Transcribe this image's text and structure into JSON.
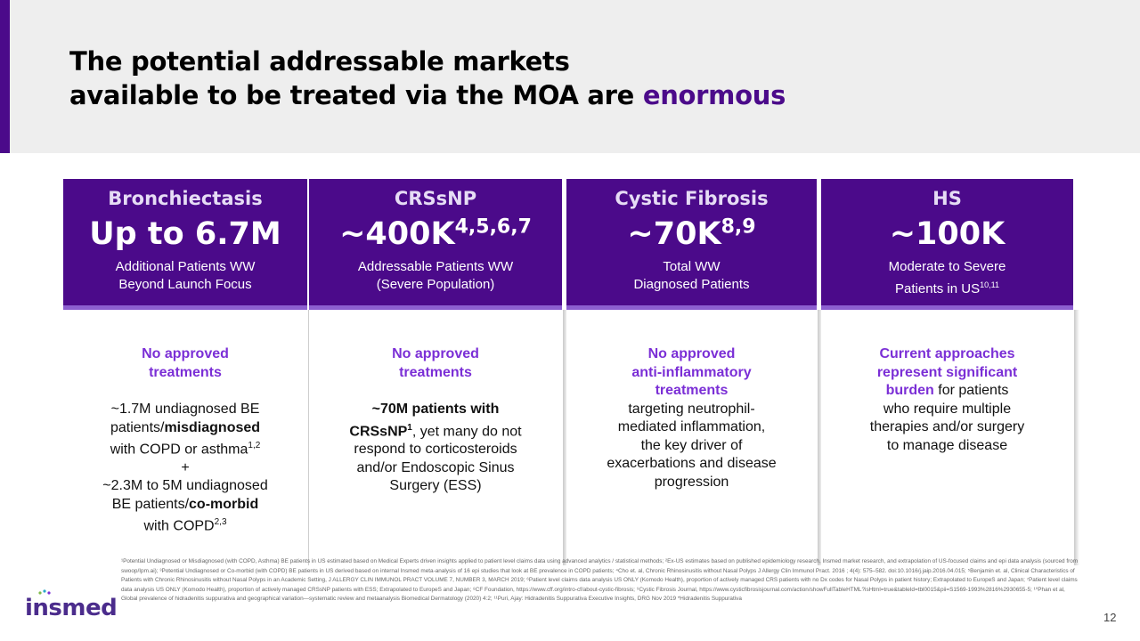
{
  "title": {
    "line1": "The potential addressable markets",
    "line2_prefix": "available to be treated via the MOA are ",
    "highlight": "enormous"
  },
  "cards": [
    {
      "name": "Bronchiectasis",
      "figure": "Up to 6.7M",
      "figure_sup": "",
      "sub1": "Additional Patients WW",
      "sub2": "Beyond Launch Focus",
      "callout1": "No approved",
      "callout2": "treatments",
      "t1": "~1.7M undiagnosed BE",
      "t2a": "patients/",
      "t2b": "misdiagnosed",
      "t3": "with COPD or asthma",
      "t3sup": "1,2",
      "t4": "+",
      "t5": "~2.3M to 5M undiagnosed",
      "t6a": "BE patients/",
      "t6b": "co-morbid",
      "t7": "with COPD",
      "t7sup": "2,3"
    },
    {
      "name": "CRSsNP",
      "figure": "~400K",
      "figure_sup": "4,5,6,7",
      "sub1": "Addressable Patients WW",
      "sub2": "(Severe Population)",
      "callout1": "No approved",
      "callout2": "treatments",
      "t1": "~70M patients with",
      "t2a": "CRSsNP",
      "t2sup": "1",
      "t2b": ", yet many do not",
      "t3": "respond to corticosteroids",
      "t4": "and/or Endoscopic Sinus",
      "t5": "Surgery (ESS)"
    },
    {
      "name": "Cystic Fibrosis",
      "figure": "~70K",
      "figure_sup": "8,9",
      "sub1": "Total WW",
      "sub2": "Diagnosed Patients",
      "callout1": "No approved",
      "callout2": "anti-inflammatory",
      "callout3": "treatments",
      "t1": "targeting neutrophil-",
      "t2": "mediated inflammation,",
      "t3": "the key driver of",
      "t4": "exacerbations and disease",
      "t5": "progression"
    },
    {
      "name": "HS",
      "figure": "~100K",
      "figure_sup": "",
      "sub1": "Moderate to Severe",
      "sub2": "Patients in US",
      "sub2sup": "10,11",
      "callout1": "Current approaches",
      "callout2": "represent significant",
      "callout3": "burden",
      "t1": " for patients",
      "t2": "who require multiple",
      "t3": "therapies and/or surgery",
      "t4": "to manage disease"
    }
  ],
  "footnote": "¹Potential Undiagnosed or Misdiagnosed (with COPD, Asthma) BE patients in US estimated based on Medical Experts driven insights applied to patient level claims data using advanced analytics / statistical methods; ²Ex-US estimates based on published epidemiology research, Insmed market research, and extrapolation of US-focused claims and epi data analysis (sourced from swoop/Ipm.ai); ³Potential Undiagnosed or Co-morbid (with COPD) BE patients in US derived based on internal Insmed meta-analysis of 16 epi studies that look at BE prevalence in COPD patients; ⁴Cho et. al, Chronic Rhinosinusitis without Nasal Polyps J Allergy Clin Immunol Pract. 2016 ; 4(4): 575–582. doi:10.1016/j.jaip.2016.04.015; ⁵Benjamin et. al, Clinical Characteristics of Patients with Chronic Rhinosinusitis without Nasal Polyps in an Academic Setting, J ALLERGY CLIN IMMUNOL PRACT VOLUME 7, NUMBER 3, MARCH 2019; ⁶Patient level claims data analysis US ONLY (Komodo Health), proportion of actively managed CRS patients with no Dx codes for Nasal Polyps in patient history; Extrapolated to EuropeS and Japan; ⁷Patient level claims data analysis US ONLY (Komodo Health), proportion of actively managed CRSsNP patients with ESS; Extrapolated to EuropeS and Japan; ⁸CF Foundation, https://www.cff.org/intro-cf/about-cystic-fibrosis; ⁹Cystic Fibrosis Journal, https://www.cysticfibrosisjournal.com/action/showFullTableHTML?isHtml=true&tableId=tbl0015&pii=S1569-1993%2816%2930655-5; ¹⁰Phan et al, Global prevalence of hidradenitis suppurativa and geographical variation—systematic review and metaanalysis Biomedical Dermatology (2020) 4:2; ¹¹Puri, Ajay: Hidradenitis Suppurativa Executive Insights, DRG Nov 2019 *Hidradenitis Suppurativa",
  "logo": {
    "text": "insmed",
    "color": "#4b2c8c"
  },
  "page_number": "12",
  "colors": {
    "brand_purple": "#4b0a8a",
    "callout_purple": "#7b2fd6",
    "header_gray": "#eeeeee"
  }
}
